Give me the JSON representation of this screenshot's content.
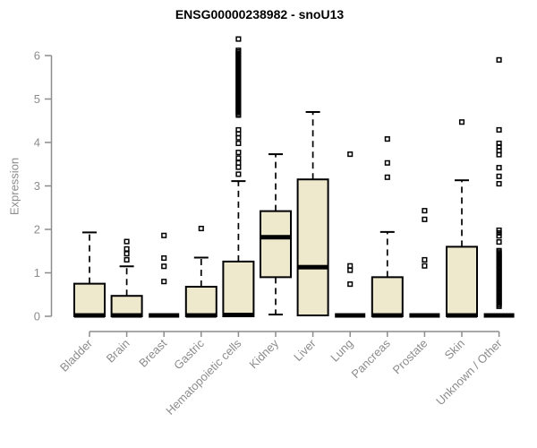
{
  "chart_data": {
    "type": "boxplot",
    "title": "ENSG00000238982 - snoU13",
    "ylabel": "Expression",
    "ylim": [
      0,
      6.5
    ],
    "yticks": [
      0,
      1,
      2,
      3,
      4,
      5,
      6
    ],
    "grid": false,
    "legend": "none",
    "categories": [
      "Bladder",
      "Brain",
      "Breast",
      "Gastric",
      "Hematopoietic cells",
      "Kidney",
      "Liver",
      "Lung",
      "Pancreas",
      "Prostate",
      "Skin",
      "Unknown / Other"
    ],
    "series": [
      {
        "category": "Bladder",
        "q1": 0,
        "median": 0.02,
        "q3": 0.75,
        "whisker_low": 0,
        "whisker_high": 1.93,
        "outliers": [],
        "outlier_bands": []
      },
      {
        "category": "Brain",
        "q1": 0,
        "median": 0.02,
        "q3": 0.47,
        "whisker_low": 0,
        "whisker_high": 1.15,
        "outliers": [
          1.72,
          1.55,
          1.44,
          1.3
        ],
        "outlier_bands": []
      },
      {
        "category": "Breast",
        "q1": 0,
        "median": 0.02,
        "q3": 0,
        "whisker_low": 0,
        "whisker_high": 0,
        "outliers": [
          1.86,
          1.34,
          1.15,
          0.8
        ],
        "outlier_bands": []
      },
      {
        "category": "Gastric",
        "q1": 0,
        "median": 0.02,
        "q3": 0.68,
        "whisker_low": 0,
        "whisker_high": 1.35,
        "outliers": [
          2.02
        ],
        "outlier_bands": []
      },
      {
        "category": "Hematopoietic cells",
        "q1": 0,
        "median": 0.03,
        "q3": 1.26,
        "whisker_low": 0,
        "whisker_high": 3.11,
        "outliers": [
          6.38,
          4.29,
          4.2,
          4.11,
          3.98,
          3.77,
          3.64,
          3.53,
          3.43,
          3.27
        ],
        "outlier_bands": [
          [
            4.63,
            6.12,
            42
          ]
        ]
      },
      {
        "category": "Kidney",
        "q1": 0.9,
        "median": 1.82,
        "q3": 2.42,
        "whisker_low": 0.04,
        "whisker_high": 3.73,
        "outliers": [],
        "outlier_bands": []
      },
      {
        "category": "Liver",
        "q1": 0.02,
        "median": 1.13,
        "q3": 3.15,
        "whisker_low": 0.02,
        "whisker_high": 4.7,
        "outliers": [],
        "outlier_bands": []
      },
      {
        "category": "Lung",
        "q1": 0,
        "median": 0.02,
        "q3": 0,
        "whisker_low": 0,
        "whisker_high": 0,
        "outliers": [
          3.73,
          1.16,
          1.06,
          0.74
        ],
        "outlier_bands": []
      },
      {
        "category": "Pancreas",
        "q1": 0,
        "median": 0.02,
        "q3": 0.9,
        "whisker_low": 0,
        "whisker_high": 1.94,
        "outliers": [
          4.08,
          3.53,
          3.2
        ],
        "outlier_bands": []
      },
      {
        "category": "Prostate",
        "q1": 0,
        "median": 0.02,
        "q3": 0,
        "whisker_low": 0,
        "whisker_high": 0,
        "outliers": [
          2.43,
          2.23,
          1.3,
          1.16
        ],
        "outlier_bands": []
      },
      {
        "category": "Skin",
        "q1": 0,
        "median": 0.02,
        "q3": 1.6,
        "whisker_low": 0,
        "whisker_high": 3.13,
        "outliers": [
          4.47
        ],
        "outlier_bands": []
      },
      {
        "category": "Unknown / Other",
        "q1": 0,
        "median": 0.02,
        "q3": 0,
        "whisker_low": 0,
        "whisker_high": 0,
        "outliers": [
          5.9,
          4.29,
          3.98,
          3.9,
          3.81,
          3.72,
          3.42,
          3.22,
          3.05,
          1.98,
          1.92,
          1.85,
          1.71
        ],
        "outlier_bands": [
          [
            0.23,
            1.51,
            38
          ]
        ]
      }
    ],
    "colors": {
      "box_fill": "#EEE8CD",
      "box_stroke": "#000000",
      "median": "#000000",
      "whisker": "#000000",
      "outlier": "#000000",
      "axis": "#8c8c8c",
      "tick_label": "#8c8c8c",
      "title": "#000000",
      "background": "#ffffff"
    }
  }
}
